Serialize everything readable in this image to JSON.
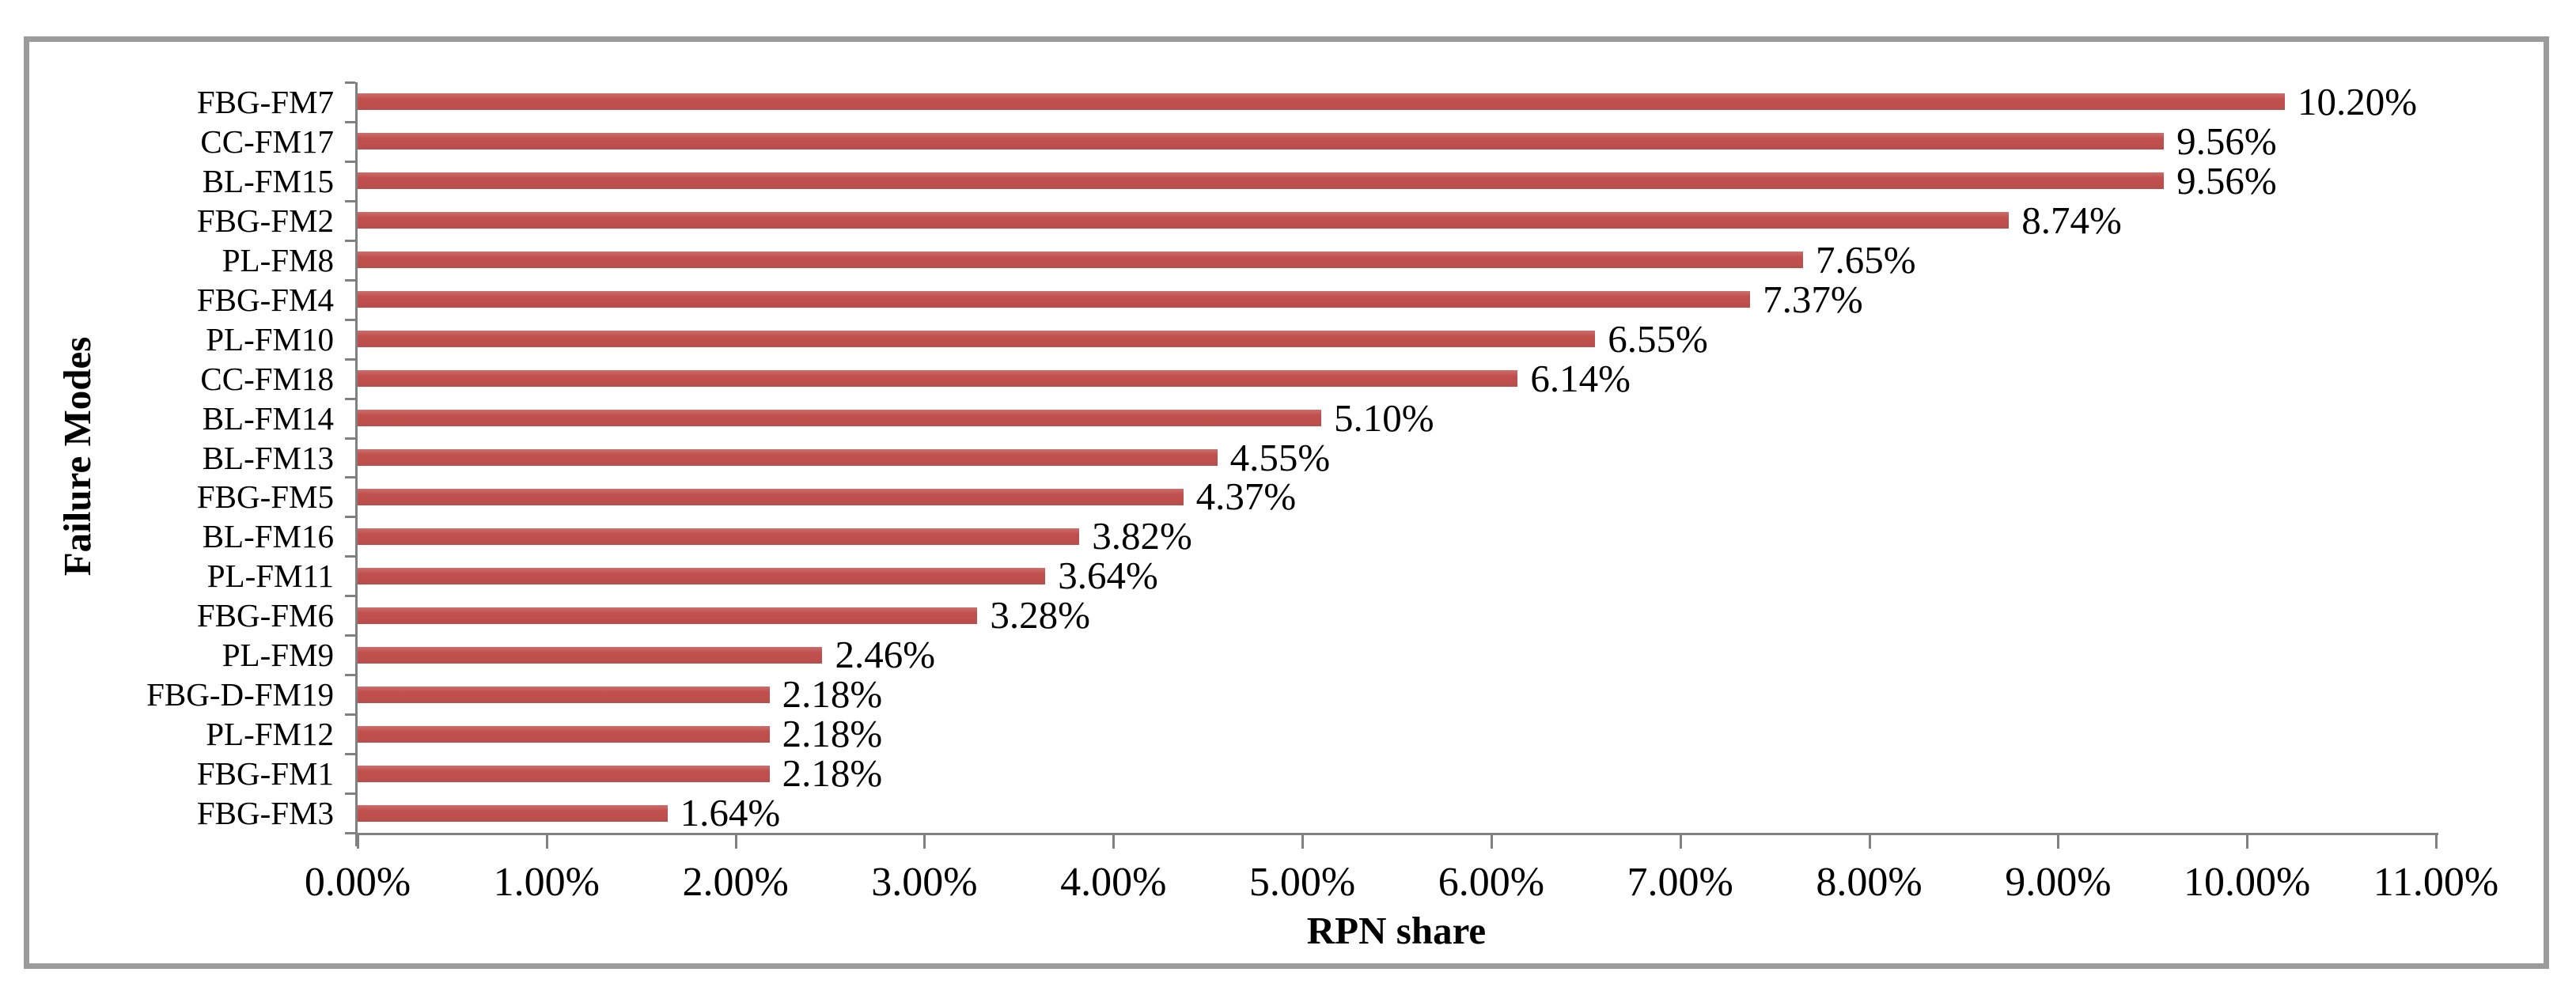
{
  "chart_data": {
    "type": "bar",
    "orientation": "horizontal",
    "title": "",
    "xlabel": "RPN share",
    "ylabel": "Failure Modes",
    "categories": [
      "FBG-FM7",
      "CC-FM17",
      "BL-FM15",
      "FBG-FM2",
      "PL-FM8",
      "FBG-FM4",
      "PL-FM10",
      "CC-FM18",
      "BL-FM14",
      "BL-FM13",
      "FBG-FM5",
      "BL-FM16",
      "PL-FM11",
      "FBG-FM6",
      "PL-FM9",
      "FBG-D-FM19",
      "PL-FM12",
      "FBG-FM1",
      "FBG-FM3"
    ],
    "values": [
      10.2,
      9.56,
      9.56,
      8.74,
      7.65,
      7.37,
      6.55,
      6.14,
      5.1,
      4.55,
      4.37,
      3.82,
      3.64,
      3.28,
      2.46,
      2.18,
      2.18,
      2.18,
      1.64
    ],
    "value_labels": [
      "10.20%",
      "9.56%",
      "9.56%",
      "8.74%",
      "7.65%",
      "7.37%",
      "6.55%",
      "6.14%",
      "5.10%",
      "4.55%",
      "4.37%",
      "3.82%",
      "3.64%",
      "3.28%",
      "2.46%",
      "2.18%",
      "2.18%",
      "2.18%",
      "1.64%"
    ],
    "x_ticks": [
      "0.00%",
      "1.00%",
      "2.00%",
      "3.00%",
      "4.00%",
      "5.00%",
      "6.00%",
      "7.00%",
      "8.00%",
      "9.00%",
      "10.00%",
      "11.00%"
    ],
    "xlim": [
      0,
      11
    ],
    "grid": false,
    "legend": null,
    "colors": {
      "bar": "#C0504D",
      "axis": "#808080",
      "frame": "#9B9B9B",
      "text": "#000000"
    }
  }
}
